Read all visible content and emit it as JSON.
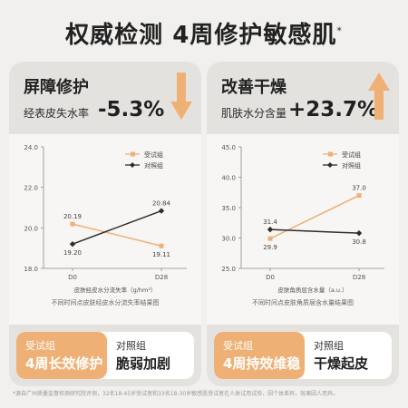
{
  "title": "权威检测  4周修护敏感肌",
  "title_mark": "*",
  "cards": [
    {
      "heading": "屏障修护",
      "subtitle": "经表皮失水率",
      "value": "-5.3%",
      "arrow": "down",
      "footer": {
        "test_label": "受试组",
        "test_text": "4周长效修护",
        "ctrl_label": "对照组",
        "ctrl_text": "脆弱加剧"
      }
    },
    {
      "heading": "改善干燥",
      "subtitle": "肌肤水分含量",
      "value": "+23.7%",
      "arrow": "up",
      "footer": {
        "test_label": "受试组",
        "test_text": "4周持效维稳",
        "ctrl_label": "对照组",
        "ctrl_text": "干燥起皮"
      }
    }
  ],
  "colors": {
    "test": "#efb075",
    "control": "#2d2d2d",
    "arrow": "#efb075"
  },
  "chart_data": [
    {
      "type": "line",
      "categories": [
        "D0",
        "D28"
      ],
      "series": [
        {
          "name": "受试组",
          "values": [
            20.19,
            19.11
          ],
          "labels": [
            "20.19",
            "19.11"
          ]
        },
        {
          "name": "对照组",
          "values": [
            19.2,
            20.84
          ],
          "labels": [
            "19.20",
            "20.84"
          ]
        }
      ],
      "yticks": [
        "24.0",
        "22.0",
        "20.0",
        "18.0"
      ],
      "ylim": [
        18,
        24
      ],
      "xlabel": "皮肤经皮水分流失率（g/hm²）",
      "caption": "不同时间点皮肤经皮水分流失率结果图",
      "legend": "top-right"
    },
    {
      "type": "line",
      "categories": [
        "D0",
        "D28"
      ],
      "series": [
        {
          "name": "受试组",
          "values": [
            29.9,
            37.0
          ],
          "labels": [
            "29.9",
            "37.0"
          ]
        },
        {
          "name": "对照组",
          "values": [
            31.4,
            30.8
          ],
          "labels": [
            "31.4",
            "30.8"
          ]
        }
      ],
      "yticks": [
        "45.0",
        "40.0",
        "35.0",
        "30.0",
        "25.0"
      ],
      "ylim": [
        25,
        45
      ],
      "xlabel": "皮肤角质层含水量（a.u.）",
      "caption": "不同时间点皮肤角质层含水量结果图",
      "legend": "top-right"
    }
  ],
  "note": "*源自广州质量监督检测研究院评测，32名18-45岁受试者和33名18-30岁敏感肌受试者在人体试用试验，因个体差异，效果因人而异。"
}
